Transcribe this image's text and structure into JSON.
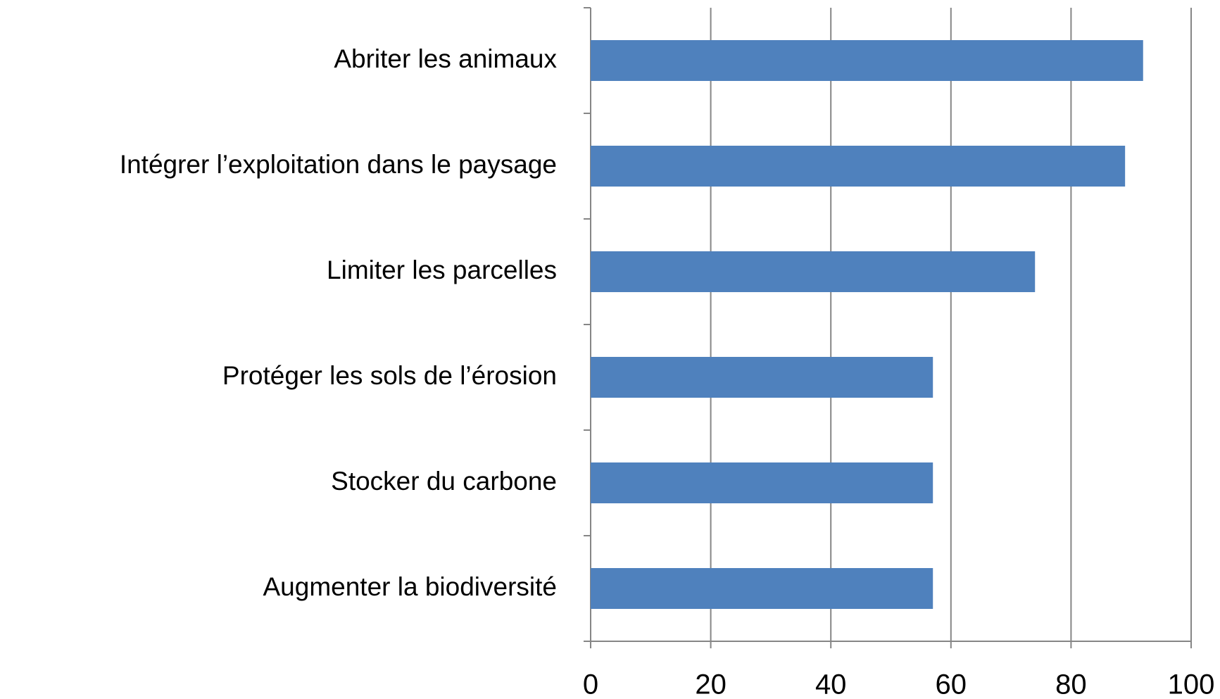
{
  "chart_data": {
    "type": "barh",
    "categories": [
      "Abriter les animaux",
      "Intégrer l’exploitation dans le paysage",
      "Limiter les parcelles",
      "Protéger les sols de l’érosion",
      "Stocker du carbone",
      "Augmenter la biodiversité"
    ],
    "values": [
      92,
      89,
      74,
      57,
      57,
      57
    ],
    "color": "#4f81bd",
    "xlim": [
      0,
      100
    ],
    "xticks": [
      0,
      20,
      40,
      60,
      80,
      100
    ],
    "grid": true
  }
}
